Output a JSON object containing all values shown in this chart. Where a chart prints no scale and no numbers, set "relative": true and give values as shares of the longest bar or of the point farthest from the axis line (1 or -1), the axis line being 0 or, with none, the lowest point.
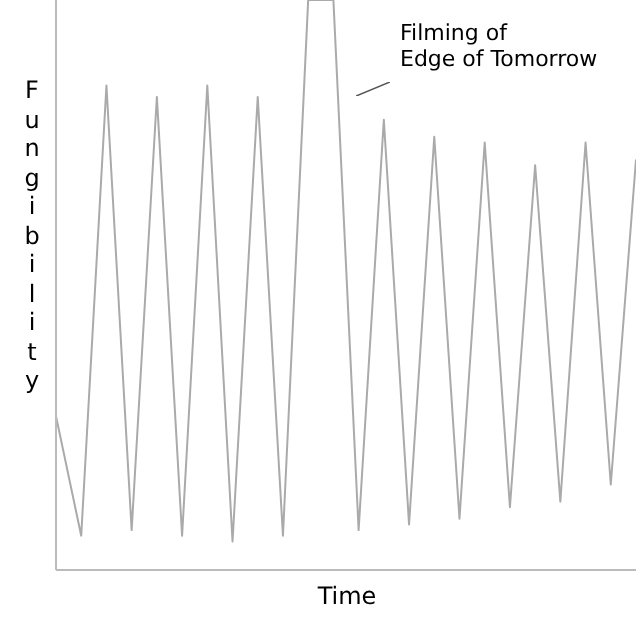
{
  "chart_data": {
    "type": "line",
    "relative": true,
    "xlabel": "Time",
    "ylabel": "Fungibility",
    "categories": [
      null,
      null,
      null,
      null,
      null,
      null,
      null,
      null,
      null,
      null,
      null,
      null,
      null,
      null,
      null,
      null,
      null,
      null,
      null,
      null,
      null,
      null,
      null,
      null
    ],
    "values": [
      0.27,
      0.06,
      0.85,
      0.07,
      0.83,
      0.06,
      0.85,
      0.05,
      0.83,
      0.06,
      1,
      1,
      0.07,
      0.79,
      0.08,
      0.76,
      0.09,
      0.75,
      0.11,
      0.71,
      0.12,
      0.75,
      0.15,
      0.72
    ],
    "color": "#aaaaaa",
    "grid": false,
    "legend": false,
    "marker": "none",
    "line_style": "solid",
    "annotations": [
      "Filming of\nEdge of Tomorrow"
    ]
  }
}
